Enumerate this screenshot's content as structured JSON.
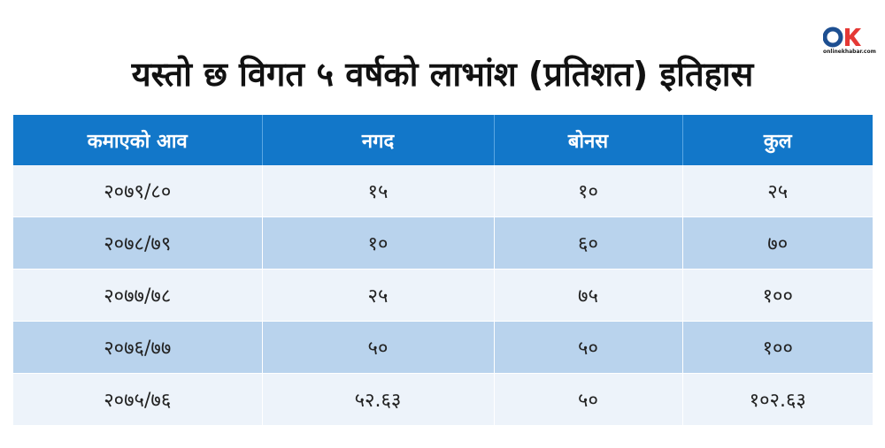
{
  "logo": {
    "mark": "OK",
    "text": "onlinekhabar.com",
    "colors": {
      "o": "#1d4f91",
      "k": "#e53935"
    }
  },
  "title": "यस्तो छ विगत ५ वर्षको लाभांश (प्रतिशत) इतिहास",
  "table": {
    "headers": [
      "कमाएको आव",
      "नगद",
      "बोनस",
      "कुल"
    ],
    "rows": [
      [
        "२०७९/८०",
        "१५",
        "१०",
        "२५"
      ],
      [
        "२०७८/७९",
        "१०",
        "६०",
        "७०"
      ],
      [
        "२०७७/७८",
        "२५",
        "७५",
        "१००"
      ],
      [
        "२०७६/७७",
        "५०",
        "५०",
        "१००"
      ],
      [
        "२०७५/७६",
        "५२.६३",
        "५०",
        "१०२.६३"
      ]
    ]
  },
  "colors": {
    "header_bg": "#1277c9",
    "row_light": "#edf3fa",
    "row_dark": "#b9d3ed"
  }
}
